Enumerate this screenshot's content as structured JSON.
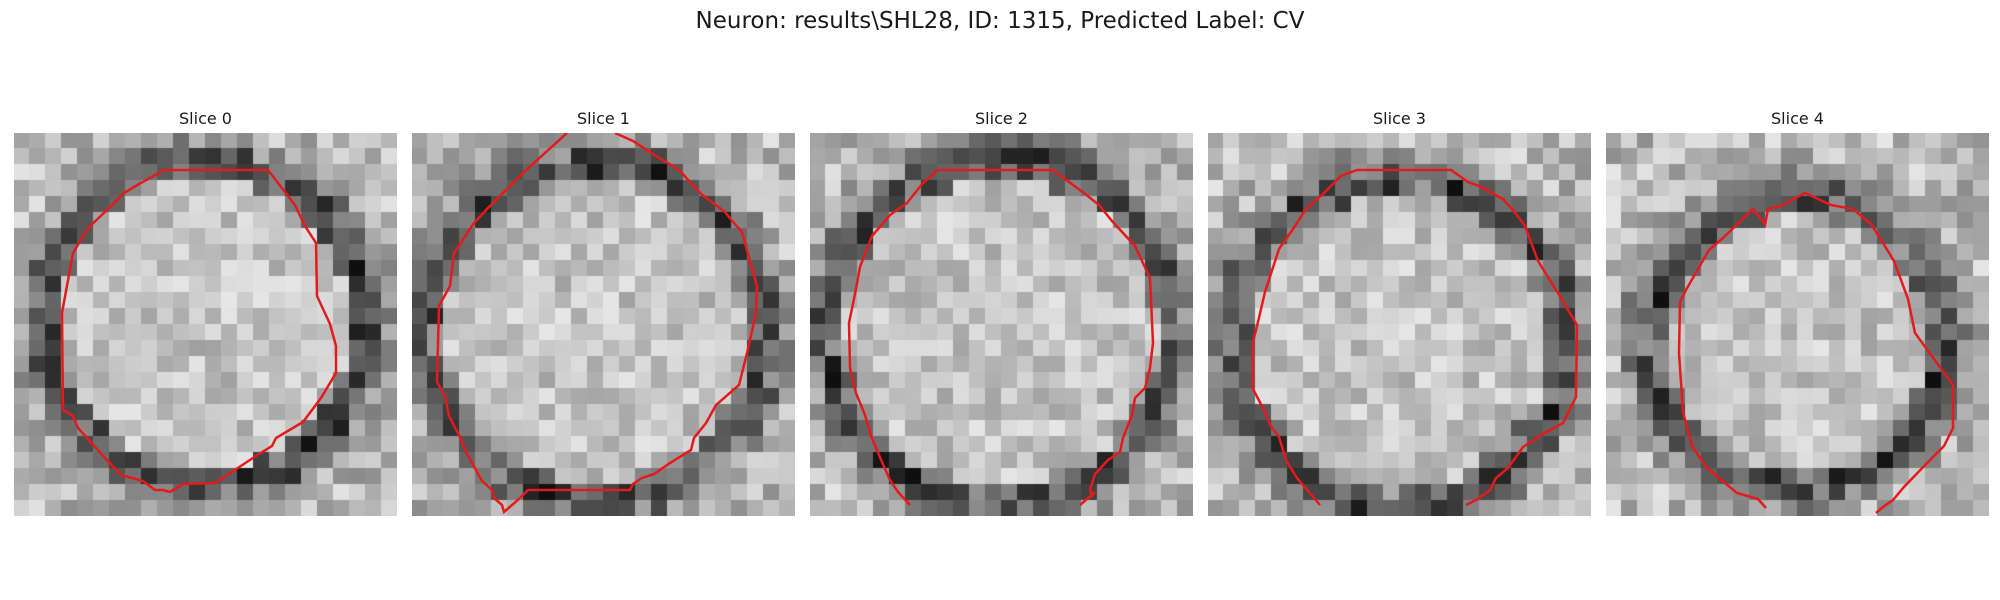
{
  "figure": {
    "title": "Neuron: results\\SHL28, ID: 1315, Predicted Label: CV"
  },
  "slices": [
    {
      "title": "Slice 0"
    },
    {
      "title": "Slice 1"
    },
    {
      "title": "Slice 2"
    },
    {
      "title": "Slice 3"
    },
    {
      "title": "Slice 4"
    }
  ],
  "colors": {
    "contour": "#e41a1c",
    "background": "#ffffff"
  }
}
